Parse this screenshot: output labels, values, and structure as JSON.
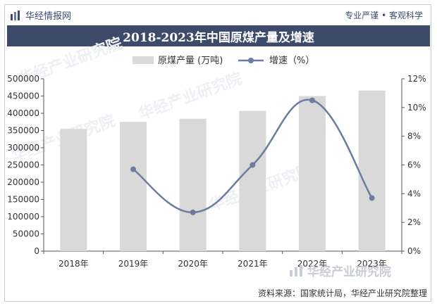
{
  "header": {
    "brand": "华经情报网",
    "motto": "专业严谨 • 客观科学"
  },
  "watermark": "华经产业研究院",
  "footer": {
    "source": "资料来源：国家统计局，华经产业研究院整理"
  },
  "colors": {
    "bar": "#d9d9d9",
    "line": "#6c7b9f",
    "title_bg": "#3e4a69"
  },
  "chart_data": {
    "type": "bar",
    "title": "2018-2023年中国原煤产量及增速",
    "categories": [
      "2018年",
      "2019年",
      "2020年",
      "2021年",
      "2022年",
      "2023年"
    ],
    "series": [
      {
        "name": "原煤产量 (万吨)",
        "type": "bar",
        "axis": "left",
        "values": [
          354591,
          375000,
          384000,
          407000,
          450000,
          466000
        ]
      },
      {
        "name": "增速（%）",
        "type": "line",
        "axis": "right",
        "values": [
          null,
          5.7,
          2.7,
          6.0,
          10.5,
          3.7
        ]
      }
    ],
    "y_left": {
      "min": 0,
      "max": 500000,
      "ticks": [
        "0",
        "50000",
        "100000",
        "150000",
        "200000",
        "250000",
        "300000",
        "350000",
        "400000",
        "450000",
        "500000"
      ]
    },
    "y_right": {
      "min": 0,
      "max": 12,
      "ticks": [
        "0%",
        "2%",
        "4%",
        "6%",
        "8%",
        "10%",
        "12%"
      ]
    },
    "legend_position": "top",
    "grid": false
  }
}
